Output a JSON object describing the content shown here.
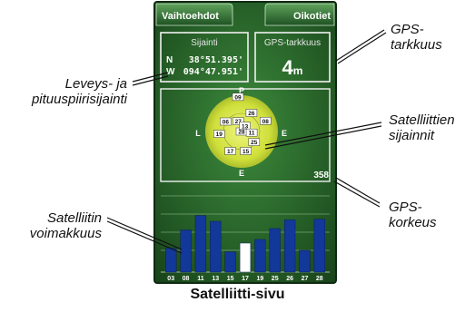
{
  "screen": {
    "left_button": "Vaihtoehdot",
    "right_button": "Oikotiet",
    "location_label": "Sijainti",
    "coord_lat_hemisphere": "N",
    "coord_lat_value": "38°51.395'",
    "coord_lon_hemisphere": "W",
    "coord_lon_value": "094°47.951'",
    "accuracy_label": "GPS-tarkkuus",
    "accuracy_value": "4",
    "accuracy_unit": "m",
    "elevation_value": "358",
    "compass": {
      "north": "P",
      "east": "E",
      "south": "E",
      "west": "L"
    }
  },
  "satellites": [
    {
      "id": "09",
      "az": -6,
      "el": 0.96
    },
    {
      "id": "28",
      "az": 0,
      "el": 0.0
    },
    {
      "id": "08",
      "az": 66,
      "el": 0.72
    },
    {
      "id": "26",
      "az": 28,
      "el": 0.58
    },
    {
      "id": "06",
      "az": -58,
      "el": 0.52
    },
    {
      "id": "27",
      "az": -18,
      "el": 0.3
    },
    {
      "id": "13",
      "az": 30,
      "el": 0.18
    },
    {
      "id": "11",
      "az": 96,
      "el": 0.28
    },
    {
      "id": "19",
      "az": -96,
      "el": 0.62
    },
    {
      "id": "15",
      "az": 168,
      "el": 0.55
    },
    {
      "id": "17",
      "az": -150,
      "el": 0.62
    },
    {
      "id": "25",
      "az": 130,
      "el": 0.45
    }
  ],
  "signal_bars": [
    {
      "id": "03",
      "strength": 0.33,
      "highlight": false
    },
    {
      "id": "08",
      "strength": 0.58,
      "highlight": false
    },
    {
      "id": "11",
      "strength": 0.78,
      "highlight": false
    },
    {
      "id": "13",
      "strength": 0.7,
      "highlight": false
    },
    {
      "id": "15",
      "strength": 0.28,
      "highlight": false
    },
    {
      "id": "17",
      "strength": 0.4,
      "highlight": true
    },
    {
      "id": "19",
      "strength": 0.45,
      "highlight": false
    },
    {
      "id": "25",
      "strength": 0.6,
      "highlight": false
    },
    {
      "id": "26",
      "strength": 0.72,
      "highlight": false
    },
    {
      "id": "27",
      "strength": 0.3,
      "highlight": false
    },
    {
      "id": "28",
      "strength": 0.73,
      "highlight": false
    }
  ],
  "callouts": {
    "gps_accuracy": [
      "GPS-",
      "tarkkuus"
    ],
    "position": [
      "Leveys- ja",
      "pituuspiirisijainti"
    ],
    "satellite_positions": [
      "Satelliittien",
      "sijainnit"
    ],
    "gps_elevation": [
      "GPS-",
      "korkeus"
    ],
    "signal_strength": [
      "Satelliitin",
      "voimakkuus"
    ]
  },
  "caption": "Satelliitti-sivu",
  "colors": {
    "background": "#2a5f2c",
    "panel_border": "#f0f0f0",
    "sky_disc": "#d9e84a",
    "bar_fill": "#12389a",
    "bar_highlight": "#ffffff"
  }
}
